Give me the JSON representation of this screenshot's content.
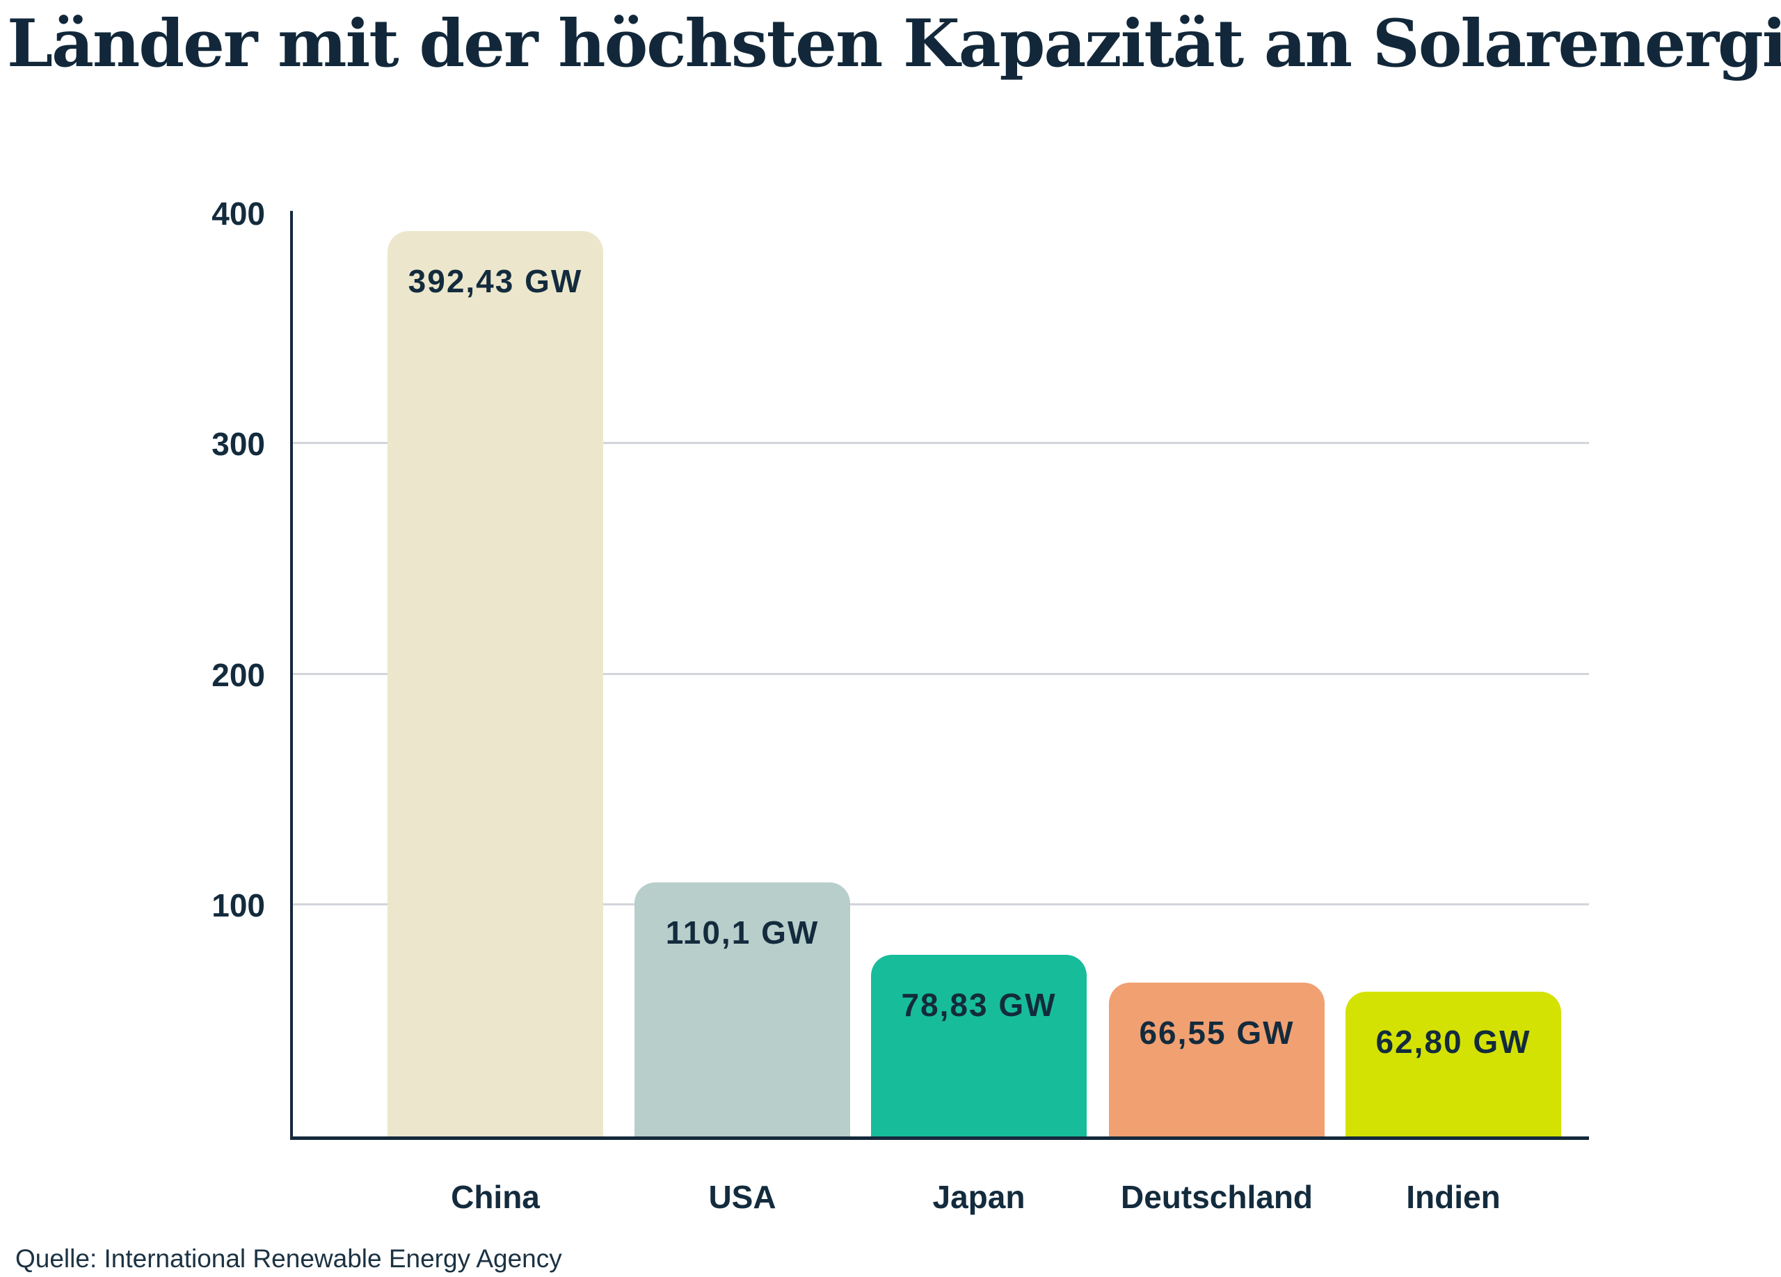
{
  "title": "Länder mit der höchsten Kapazität an Solarenergie",
  "source": "Quelle: International Renewable Energy Agency",
  "colors": {
    "background": "#FFFFFF",
    "title_text": "#12283A",
    "label_text": "#132B3D",
    "axis": "#14293B",
    "gridline": "#D2D6DB"
  },
  "chart_data": {
    "type": "bar",
    "title": "Länder mit der höchsten Kapazität an Solarenergie",
    "xlabel": "",
    "ylabel": "",
    "unit": "GW",
    "categories": [
      "China",
      "USA",
      "Japan",
      "Deutschland",
      "Indien"
    ],
    "values": [
      392.43,
      110.1,
      78.83,
      66.55,
      62.8
    ],
    "value_labels": [
      "392,43 GW",
      "110,1 GW",
      "78,83 GW",
      "66,55 GW",
      "62,80 GW"
    ],
    "bar_colors": [
      "#ECE7CC",
      "#B8CECB",
      "#17BD9A",
      "#F1A072",
      "#D3E203"
    ],
    "ylim": [
      0,
      400
    ],
    "yticks": [
      400,
      300,
      200,
      100
    ],
    "gridlines": [
      300,
      200,
      100
    ],
    "grid": true,
    "legend": false,
    "source": "Quelle: International Renewable Energy Agency"
  }
}
